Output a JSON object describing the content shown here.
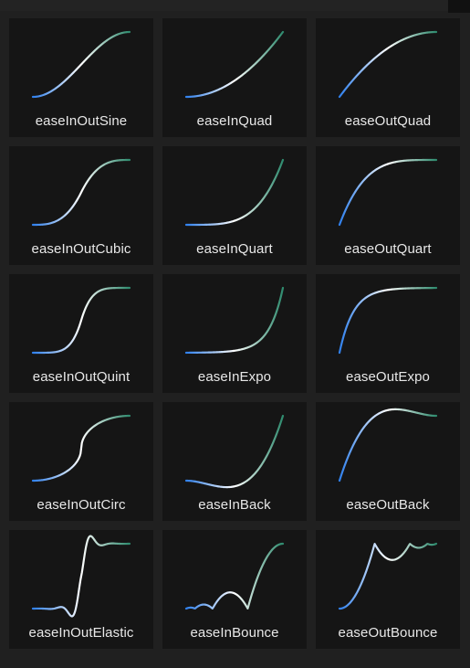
{
  "colors": {
    "background": "#202020",
    "card": "#151515",
    "label": "#e8e8e8",
    "curve_start": "#2f80ed",
    "curve_end": "#2e8b6e",
    "curve_highlight": "#ffffff"
  },
  "cards": [
    {
      "label": "easeInOutSine",
      "ease": "easeInOutSine"
    },
    {
      "label": "easeInQuad",
      "ease": "easeInQuad"
    },
    {
      "label": "easeOutQuad",
      "ease": "easeOutQuad"
    },
    {
      "label": "easeInOutCubic",
      "ease": "easeInOutCubic"
    },
    {
      "label": "easeInQuart",
      "ease": "easeInQuart"
    },
    {
      "label": "easeOutQuart",
      "ease": "easeOutQuart"
    },
    {
      "label": "easeInOutQuint",
      "ease": "easeInOutQuint"
    },
    {
      "label": "easeInExpo",
      "ease": "easeInExpo"
    },
    {
      "label": "easeOutExpo",
      "ease": "easeOutExpo"
    },
    {
      "label": "easeInOutCirc",
      "ease": "easeInOutCirc"
    },
    {
      "label": "easeInBack",
      "ease": "easeInBack"
    },
    {
      "label": "easeOutBack",
      "ease": "easeOutBack"
    },
    {
      "label": "easeInOutElastic",
      "ease": "easeInOutElastic"
    },
    {
      "label": "easeInBounce",
      "ease": "easeInBounce"
    },
    {
      "label": "easeOutBounce",
      "ease": "easeOutBounce"
    }
  ]
}
